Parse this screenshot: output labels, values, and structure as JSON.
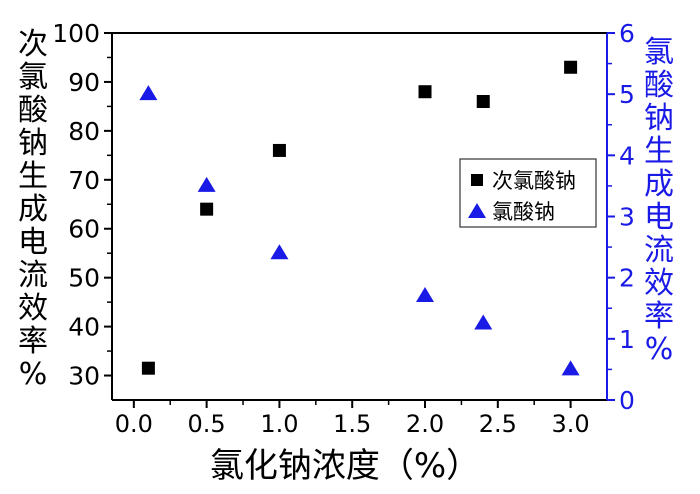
{
  "chart_data": {
    "type": "scatter",
    "xlabel": "氯化钠浓度（%）",
    "ylabel_left": "次氯酸钠生成电流效率%",
    "ylabel_right": "氯酸钠生成电流效率%",
    "xlim": [
      -0.15,
      3.25
    ],
    "ylim_left": [
      25,
      100
    ],
    "ylim_right": [
      0,
      6
    ],
    "x_ticks": [
      "0.0",
      "0.5",
      "1.0",
      "1.5",
      "2.0",
      "2.5",
      "3.0"
    ],
    "y_left_ticks": [
      "30",
      "40",
      "50",
      "60",
      "70",
      "80",
      "90",
      "100"
    ],
    "y_right_ticks": [
      "0",
      "1",
      "2",
      "3",
      "4",
      "5",
      "6"
    ],
    "legend_position": "right",
    "series": [
      {
        "name": "次氯酸钠",
        "axis": "left",
        "marker": "square",
        "color": "#000000",
        "x": [
          0.1,
          0.5,
          1.0,
          2.0,
          2.4,
          3.0
        ],
        "y": [
          31.5,
          64,
          76,
          88,
          86,
          93
        ]
      },
      {
        "name": "氯酸钠",
        "axis": "right",
        "marker": "triangle",
        "color": "#1a1ae6",
        "x": [
          0.1,
          0.5,
          1.0,
          2.0,
          2.4,
          3.0
        ],
        "y": [
          5.0,
          3.5,
          2.4,
          1.7,
          1.25,
          0.5
        ]
      }
    ]
  }
}
